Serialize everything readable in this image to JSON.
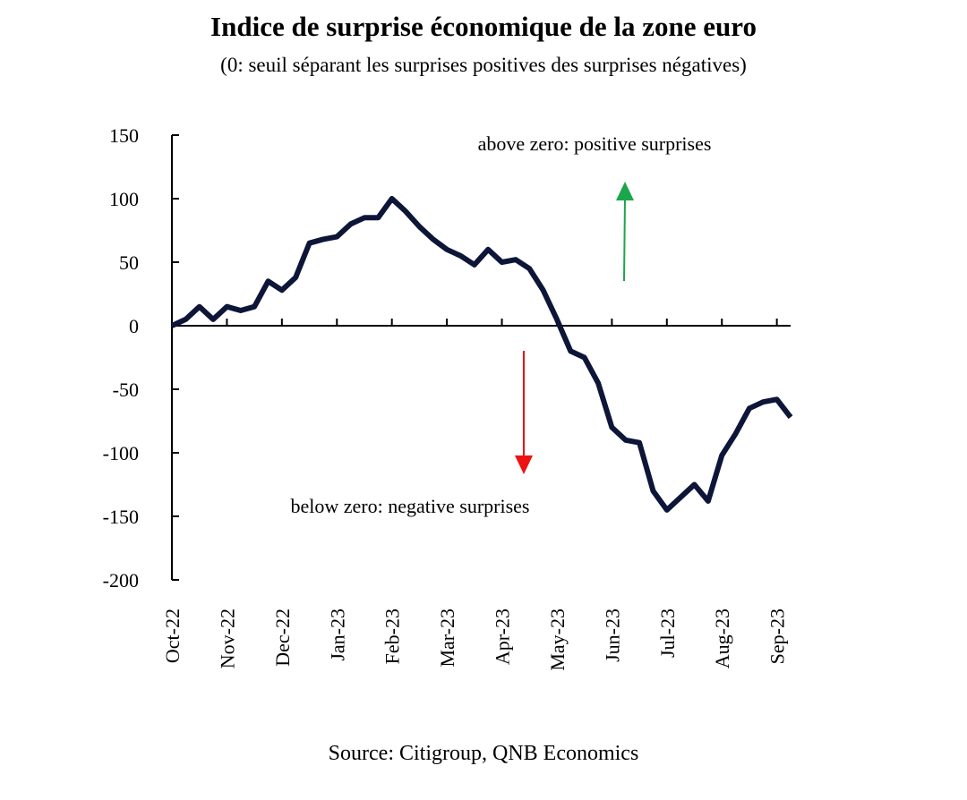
{
  "chart_data": {
    "type": "line",
    "title": "Indice de surprise économique de la zone euro",
    "subtitle": "(0: seuil séparant les surprises positives des surprises négatives)",
    "annotations": [
      "above zero: positive surprises",
      "below zero: negative surprises"
    ],
    "source": "Source: Citigroup, QNB Economics",
    "categories": [
      "Oct-22",
      null,
      null,
      null,
      "Nov-22",
      null,
      null,
      null,
      "Dec-22",
      null,
      null,
      null,
      "Jan-23",
      null,
      null,
      null,
      "Feb-23",
      null,
      null,
      null,
      "Mar-23",
      null,
      null,
      null,
      "Apr-23",
      null,
      null,
      null,
      "May-23",
      null,
      null,
      null,
      "Jun-23",
      null,
      null,
      null,
      "Jul-23",
      null,
      null,
      null,
      "Aug-23",
      null,
      null,
      null,
      "Sep-23",
      null
    ],
    "series": [
      {
        "name": "Indice de surprise économique",
        "color": "#0d1638",
        "values": [
          0,
          5,
          15,
          5,
          15,
          12,
          15,
          35,
          28,
          38,
          65,
          68,
          70,
          80,
          85,
          85,
          100,
          90,
          78,
          68,
          60,
          55,
          48,
          60,
          50,
          52,
          45,
          28,
          5,
          -20,
          -25,
          -45,
          -80,
          -90,
          -92,
          -130,
          -145,
          -135,
          -125,
          -138,
          -102,
          -85,
          -65,
          -60,
          -58,
          -72
        ]
      }
    ],
    "ylim": [
      -200,
      150
    ],
    "yticks": [
      -200,
      -150,
      -100,
      -50,
      0,
      50,
      100,
      150
    ]
  }
}
